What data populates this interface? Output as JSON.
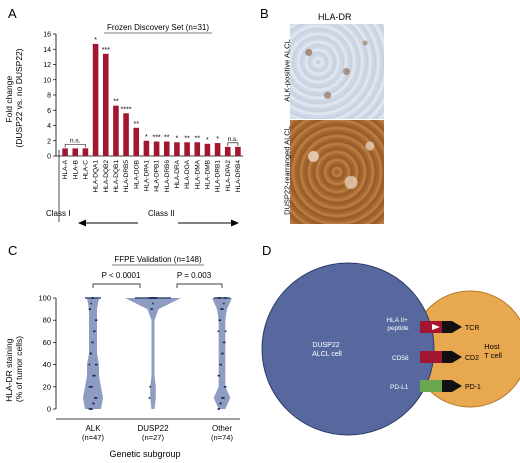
{
  "panel_a": {
    "letter": "A",
    "title": "Frozen Discovery Set (n=31)",
    "ylabel": "Fold change",
    "ylabel2": "(DUSP22 vs. no DUSP22)",
    "class1_label": "Class I",
    "class2_label": "Class II",
    "bar_color": "#a3162f"
  },
  "panel_b": {
    "letter": "B",
    "title": "HLA-DR",
    "label_top": "ALK-positive ALCL",
    "label_bottom": "DUSP22-rearranged ALCL"
  },
  "panel_c": {
    "letter": "C",
    "title": "FFPE Validation (n=148)",
    "ylabel": "HLA-DR staining",
    "ylabel2": "(% of tumor cells)",
    "xlabel": "Genetic subgroup",
    "pval1": "P < 0.0001",
    "pval2": "P = 0.003",
    "groups": [
      {
        "name": "ALK",
        "n": "(n=47)"
      },
      {
        "name": "DUSP22",
        "n": "(n=27)"
      },
      {
        "name": "Other",
        "n": "(n=74)"
      }
    ],
    "violin_color": "#8e9cc4"
  },
  "panel_d": {
    "letter": "D",
    "alcl_cell_line1": "DUSP22",
    "alcl_cell_line2": "ALCL cell",
    "tcell_line1": "Host",
    "tcell_line2": "T cell",
    "hla_line1": "HLA II+",
    "hla_line2": "peptide",
    "cd58": "CD58",
    "pdl1": "PD-L1",
    "tcr": "TCR",
    "cd2": "CD2",
    "pd1": "PD-1",
    "alcl_color": "#56689e",
    "tcell_color": "#e8a84f",
    "hla_color": "#a3162f",
    "cd58_color": "#a3162f",
    "pdl1_color": "#6aa84f"
  },
  "chart_data": [
    {
      "type": "bar",
      "title": "Frozen Discovery Set (n=31)",
      "ylabel": "Fold change (DUSP22 vs. no DUSP22)",
      "ylim": [
        0,
        16
      ],
      "yticks": [
        0,
        2,
        4,
        6,
        8,
        10,
        12,
        14,
        16
      ],
      "categories": [
        "HLA-A",
        "HLA-B",
        "HLA-C",
        "HLA-DQA1",
        "HLA-DQB2",
        "HLA-DQB1",
        "HLA-DRB5",
        "HLA-DOB",
        "HLA-DPA1",
        "HLA-DPB1",
        "HLA-DRB6",
        "HLA-DRA",
        "HLA-DOA",
        "HLA-DMA",
        "HLA-DMB",
        "HLA-DRB1",
        "HLA-DPA2",
        "HLA-DRB4"
      ],
      "values": [
        1.0,
        1.0,
        1.0,
        14.7,
        13.4,
        6.6,
        5.6,
        3.7,
        2.0,
        1.9,
        1.9,
        1.8,
        1.8,
        1.8,
        1.6,
        1.7,
        1.2,
        1.2
      ],
      "significance": [
        "",
        "",
        "",
        "*",
        "***",
        "**",
        "****",
        "**",
        "*",
        "***",
        "**",
        "*",
        "**",
        "**",
        "*",
        "*",
        "",
        ""
      ],
      "ns_groups": [
        [
          0,
          2
        ],
        [
          16,
          17
        ]
      ],
      "ns_label": "n.s."
    },
    {
      "type": "violin",
      "title": "FFPE Validation (n=148)",
      "ylabel": "HLA-DR staining (% of tumor cells)",
      "xlabel": "Genetic subgroup",
      "ylim": [
        0,
        100
      ],
      "yticks": [
        0,
        20,
        40,
        60,
        80,
        100
      ],
      "categories": [
        "ALK",
        "DUSP22",
        "Other"
      ],
      "points": [
        [
          0,
          0,
          0,
          0,
          5,
          5,
          10,
          10,
          10,
          20,
          20,
          20,
          20,
          30,
          30,
          30,
          40,
          40,
          40,
          50,
          50,
          60,
          60,
          70,
          70,
          80,
          80,
          90,
          90,
          95,
          100,
          100
        ],
        [
          10,
          20,
          90,
          90,
          95,
          100,
          100,
          100,
          100,
          100,
          100,
          100,
          100,
          100
        ],
        [
          0,
          0,
          5,
          5,
          10,
          10,
          10,
          20,
          20,
          30,
          30,
          40,
          40,
          50,
          50,
          60,
          60,
          70,
          70,
          80,
          80,
          90,
          90,
          90,
          95,
          100,
          100,
          100,
          100,
          100
        ]
      ]
    }
  ]
}
